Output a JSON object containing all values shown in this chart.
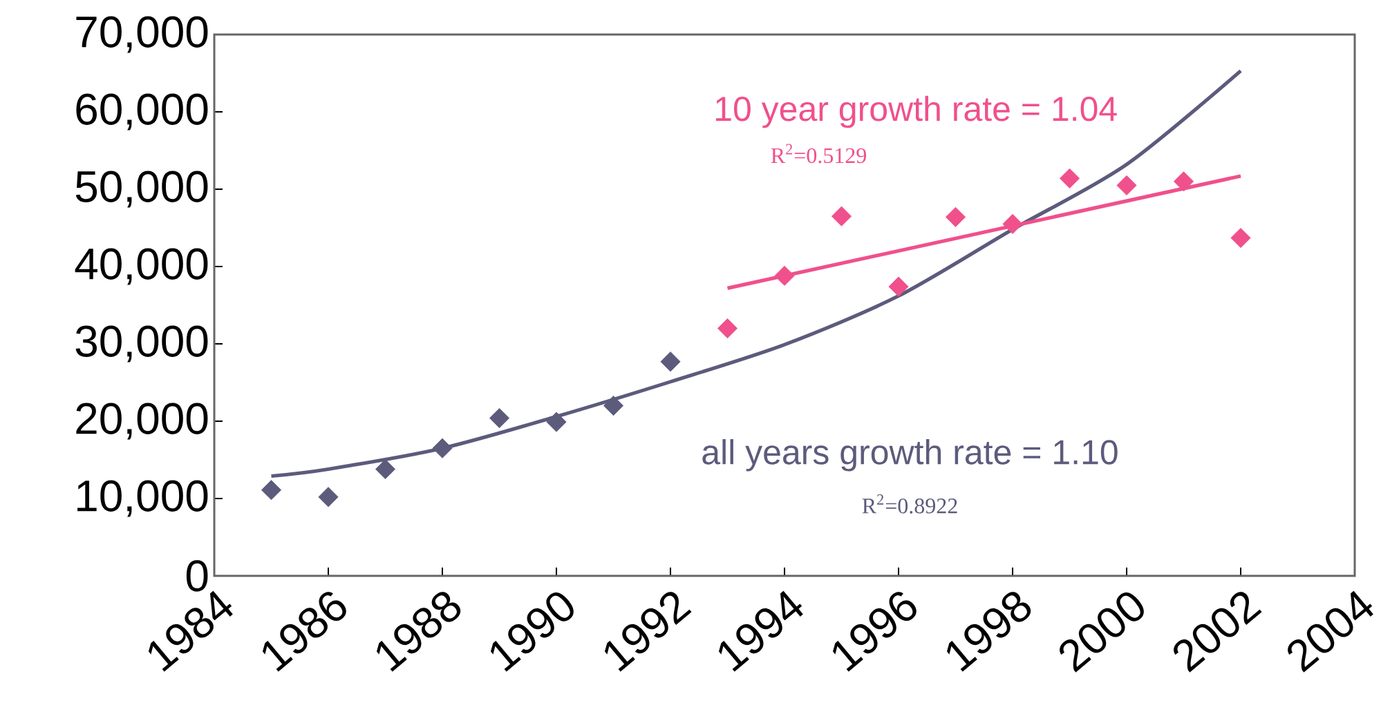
{
  "chart_data": {
    "type": "scatter",
    "xlim": [
      1984,
      2004
    ],
    "xticks": [
      1984,
      1986,
      1988,
      1990,
      1992,
      1994,
      1996,
      1998,
      2000,
      2002,
      2004
    ],
    "ylim": [
      0,
      70000
    ],
    "yticks": [
      0,
      {
        "value": 10000,
        "label": "10,000"
      },
      {
        "value": 20000,
        "label": "20,000"
      },
      {
        "value": 30000,
        "label": "30,000"
      },
      {
        "value": 40000,
        "label": "40,000"
      },
      {
        "value": 50000,
        "label": "50,000"
      },
      {
        "value": 60000,
        "label": "60,000"
      },
      {
        "value": 70000,
        "label": "70,000"
      }
    ],
    "series": [
      {
        "marker": "diamond",
        "color": "#5c5b7c",
        "x": [
          1985,
          1986,
          1987,
          1988,
          1989,
          1990,
          1991,
          1992
        ],
        "values": [
          11100,
          10200,
          13800,
          16500,
          20400,
          19900,
          22000,
          27700
        ]
      },
      {
        "marker": "diamond",
        "color": "#f0508c",
        "x": [
          1993,
          1994,
          1995,
          1996,
          1997,
          1998,
          1999,
          2000,
          2001,
          2002
        ],
        "values": [
          32000,
          38800,
          46500,
          37400,
          46400,
          45500,
          51400,
          50500,
          51000,
          43700
        ]
      },
      {
        "type": "line",
        "marker": "none",
        "color": "#5c5b7c",
        "x": [
          1985,
          1986,
          1988,
          1990,
          1992,
          1994,
          1996,
          1998,
          2000,
          2002
        ],
        "values": [
          12900,
          13800,
          16500,
          20600,
          25100,
          29900,
          36200,
          44800,
          53200,
          65300
        ]
      },
      {
        "type": "line",
        "marker": "none",
        "color": "#f0508c",
        "x": [
          1993,
          2002
        ],
        "values": [
          37200,
          51700
        ]
      }
    ],
    "annotations": [
      "10 year growth rate = 1.04",
      "R$^{2}$=0.5129",
      "all years growth rate = 1.10",
      "R$^{2}$=0.8922"
    ]
  }
}
